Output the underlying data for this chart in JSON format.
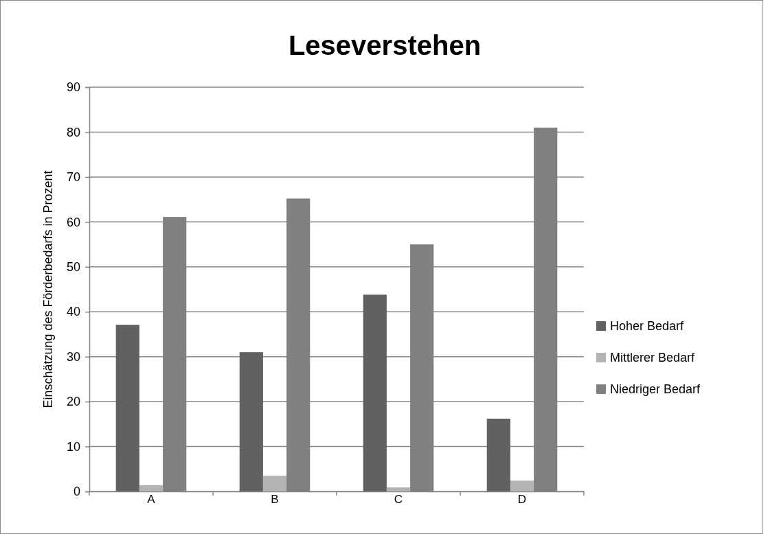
{
  "chart_data": {
    "type": "bar",
    "title": "Leseverstehen",
    "ylabel": "Einschätzung des Förderbedarfs in Prozent",
    "categories": [
      "A",
      "B",
      "C",
      "D"
    ],
    "series": [
      {
        "name": "Hoher Bedarf",
        "color": "#616161",
        "values": [
          37.1,
          31.0,
          43.8,
          16.2
        ]
      },
      {
        "name": "Mittlerer Bedarf",
        "color": "#b3b3b3",
        "values": [
          1.4,
          3.5,
          0.9,
          2.4
        ]
      },
      {
        "name": "Niedriger Bedarf",
        "color": "#808080",
        "values": [
          61.1,
          65.2,
          55.0,
          81.0
        ]
      }
    ],
    "ylim": [
      0,
      90
    ],
    "yticks": [
      0,
      10,
      20,
      30,
      40,
      50,
      60,
      70,
      80,
      90
    ],
    "grid": "y",
    "legend": "right"
  }
}
